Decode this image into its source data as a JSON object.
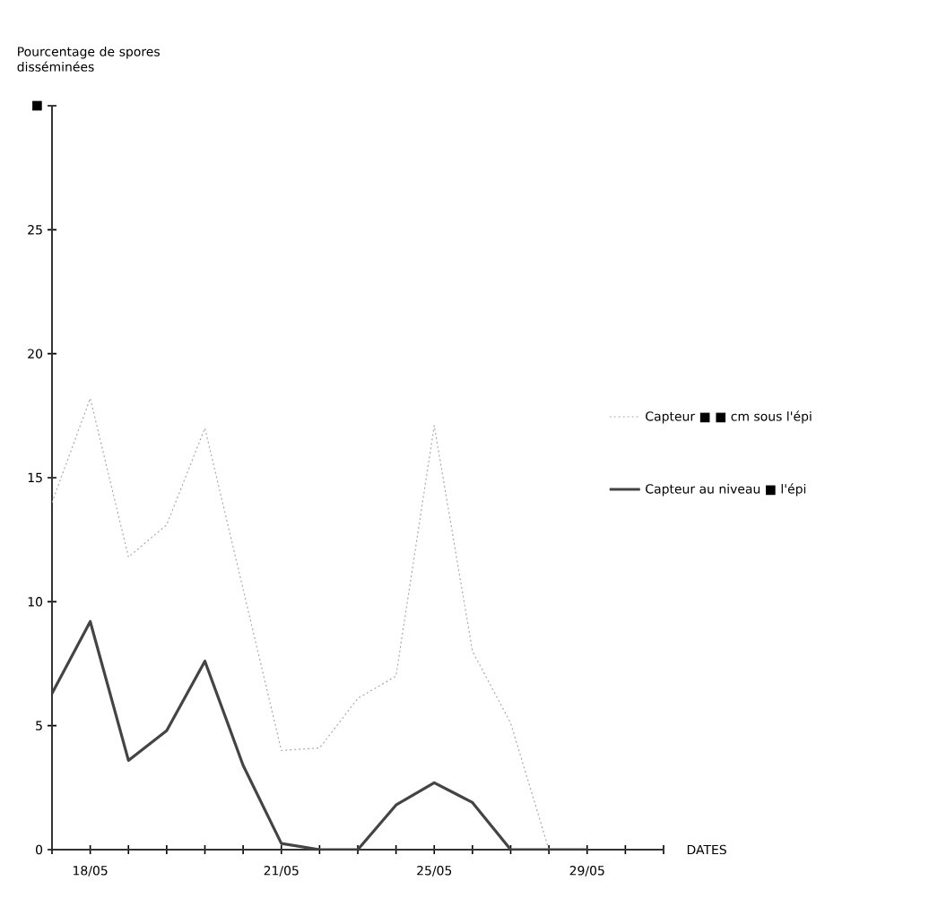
{
  "chart_data": {
    "type": "line",
    "xlabel": "DATES",
    "ylabel": "Pourcentage de spores disséminées",
    "categories": [
      null,
      "18/05",
      null,
      null,
      null,
      null,
      "21/05",
      null,
      null,
      null,
      "25/05",
      null,
      null,
      null,
      "29/05",
      null,
      null
    ],
    "series": [
      {
        "name": "Capteur ■ ■ cm sous l'épi",
        "color": "#a8a8a8",
        "line_style": "dotted",
        "values": [
          14,
          18.2,
          11.8,
          13.1,
          17,
          10.5,
          4,
          4.1,
          6.1,
          7,
          17.1,
          8,
          5.1,
          0,
          null,
          null,
          null
        ]
      },
      {
        "name": "Capteur au niveau ■ l'épi",
        "color": "#444444",
        "line_style": "solid",
        "values": [
          6.3,
          9.2,
          3.6,
          4.8,
          7.6,
          3.4,
          0.25,
          0,
          0,
          1.8,
          2.7,
          1.9,
          0,
          0,
          0,
          null,
          null
        ]
      }
    ],
    "ylim": [
      0,
      30
    ],
    "yticks": [
      0,
      5,
      10,
      15,
      20,
      25,
      {
        "value": 30,
        "label": "■"
      }
    ],
    "legend": "right",
    "marker": "none",
    "grid": false
  }
}
